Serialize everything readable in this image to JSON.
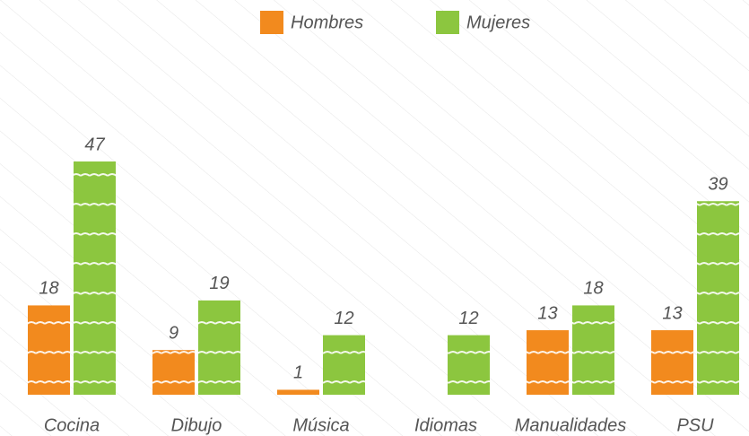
{
  "chart_data": {
    "type": "bar",
    "categories": [
      "Cocina",
      "Dibujo",
      "Música",
      "Idiomas",
      "Manualidades",
      "PSU"
    ],
    "series": [
      {
        "name": "Hombres",
        "color": "#f28a1e",
        "values": [
          18,
          9,
          1,
          null,
          13,
          13
        ]
      },
      {
        "name": "Mujeres",
        "color": "#8cc63f",
        "values": [
          47,
          19,
          12,
          12,
          18,
          39
        ]
      }
    ],
    "legend": "top"
  }
}
